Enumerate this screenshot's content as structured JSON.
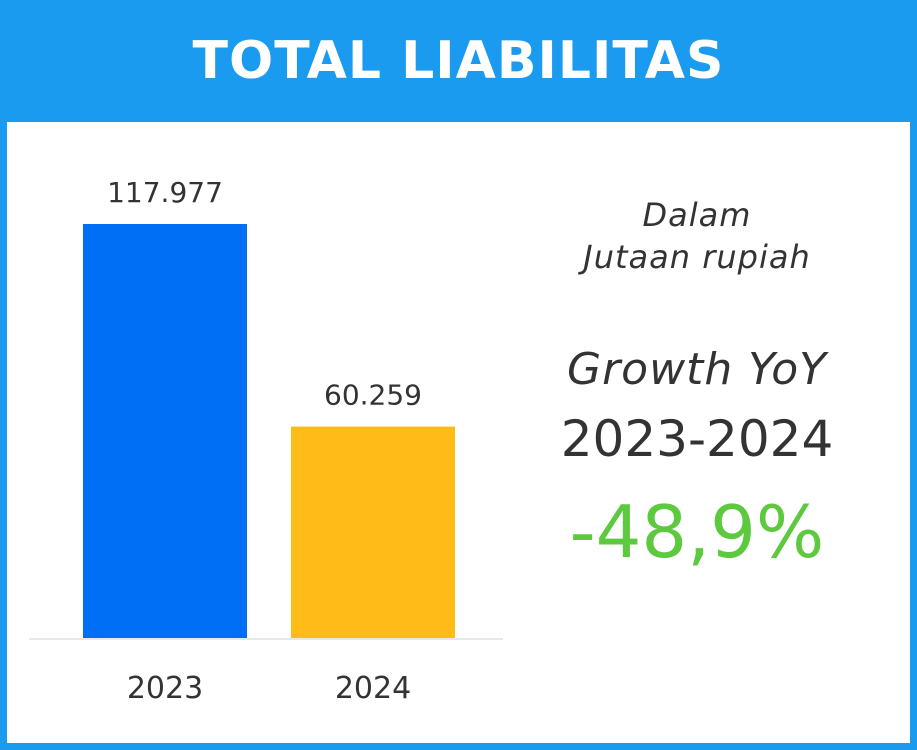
{
  "header": {
    "title": "TOTAL LIABILITAS"
  },
  "note": {
    "line1": "Dalam",
    "line2": "Jutaan rupiah"
  },
  "growth": {
    "label": "Growth YoY",
    "period": "2023-2024",
    "value": "-48,9%",
    "color": "#5cc93e"
  },
  "chart_data": {
    "type": "bar",
    "title": "TOTAL LIABILITAS",
    "categories": [
      "2023",
      "2024"
    ],
    "values": [
      117977,
      60259
    ],
    "value_labels": [
      "117.977",
      "60.259"
    ],
    "colors": [
      "#006ef5",
      "#ffbc19"
    ],
    "ylim": [
      0,
      117977
    ],
    "grid": false,
    "xlabel": "",
    "ylabel": ""
  },
  "colors": {
    "frame": "#1a9bf0",
    "text": "#333333"
  }
}
